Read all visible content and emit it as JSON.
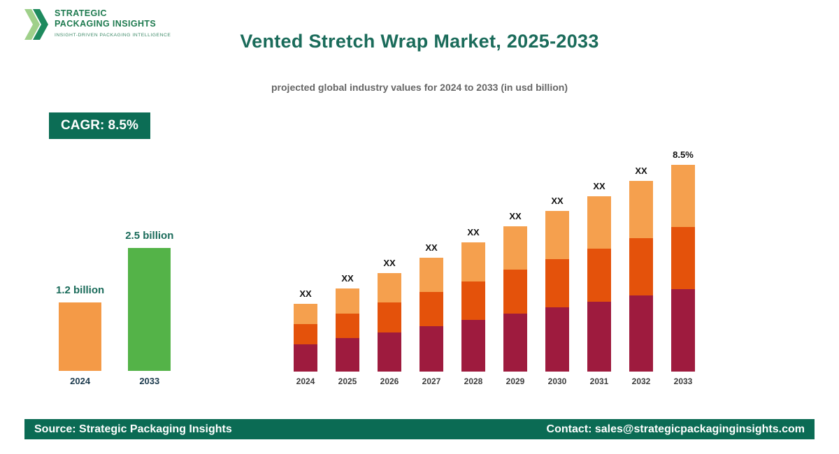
{
  "brand": {
    "line1": "STRATEGIC",
    "line2": "PACKAGING INSIGHTS",
    "tagline": "INSIGHT-DRIVEN PACKAGING INTELLIGENCE"
  },
  "header": {
    "title": "Vented Stretch Wrap Market, 2025-2033",
    "subtitle": "projected global industry values for 2024 to 2033 (in usd billion)"
  },
  "cagr_badge": "CAGR: 8.5%",
  "mini_chart": {
    "type": "bar",
    "bars": [
      {
        "year": "2024",
        "label": "1.2 billion",
        "value": 1.2,
        "color": "#F49A47"
      },
      {
        "year": "2033",
        "label": "2.5 billion",
        "value": 2.5,
        "color": "#54B348"
      }
    ]
  },
  "chart_data": {
    "type": "bar",
    "stacked": true,
    "title": "Vented Stretch Wrap Market, 2025-2033",
    "xlabel": "",
    "ylabel": "USD billion",
    "categories": [
      "2024",
      "2025",
      "2026",
      "2027",
      "2028",
      "2029",
      "2030",
      "2031",
      "2032",
      "2033"
    ],
    "totals": [
      1.2,
      1.3,
      1.41,
      1.53,
      1.66,
      1.81,
      1.96,
      2.12,
      2.3,
      2.5
    ],
    "bar_labels": [
      "XX",
      "XX",
      "XX",
      "XX",
      "XX",
      "XX",
      "XX",
      "XX",
      "XX",
      "8.5%"
    ],
    "segments_bottom_to_top": [
      {
        "name": "segment-dark-red",
        "color": "#9E1B3E",
        "fraction": 0.4
      },
      {
        "name": "segment-orange",
        "color": "#E4520B",
        "fraction": 0.3
      },
      {
        "name": "segment-light-orange",
        "color": "#F5A04E",
        "fraction": 0.3
      }
    ],
    "ylim": [
      0,
      2.5
    ],
    "grid": false,
    "legend": false
  },
  "footer": {
    "source": "Source: Strategic Packaging Insights",
    "contact": "Contact: sales@strategicpackaginginsights.com"
  },
  "colors": {
    "accent_green": "#0C6D55",
    "title_teal": "#1A6B5A",
    "logo_green": "#1E7A4F"
  }
}
